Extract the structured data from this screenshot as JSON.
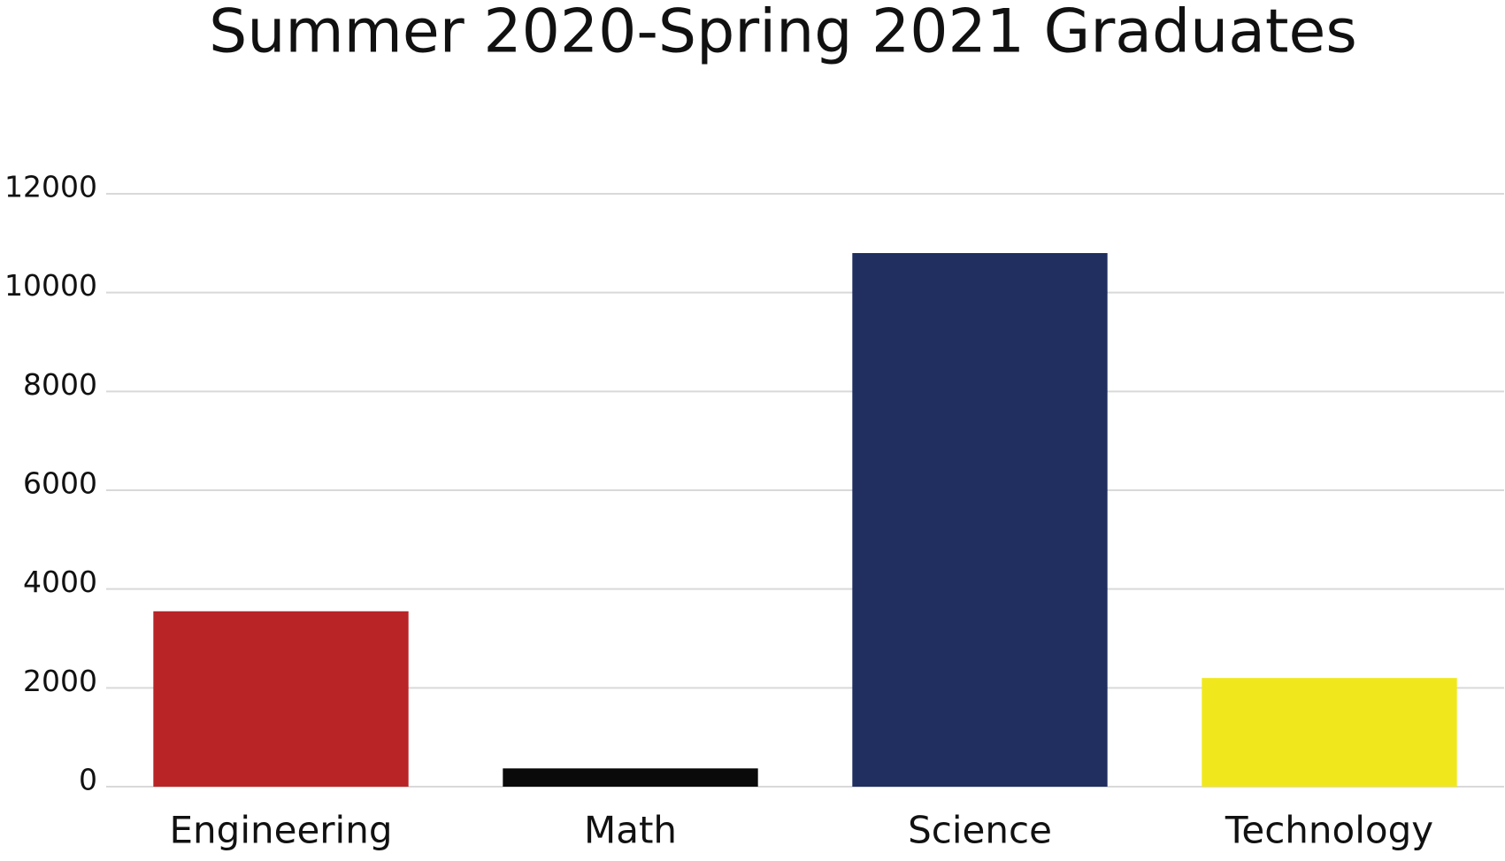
{
  "chart_data": {
    "type": "bar",
    "title": "Summer 2020-Spring 2021 Graduates",
    "categories": [
      "Engineering",
      "Math",
      "Science",
      "Technology"
    ],
    "values": [
      3550,
      370,
      10800,
      2200
    ],
    "colors": [
      "#b92426",
      "#0a0a0a",
      "#202e60",
      "#f0e81c"
    ],
    "ylim": [
      0,
      12000
    ],
    "yticks": [
      0,
      2000,
      4000,
      6000,
      8000,
      10000,
      12000
    ],
    "grid": true
  }
}
